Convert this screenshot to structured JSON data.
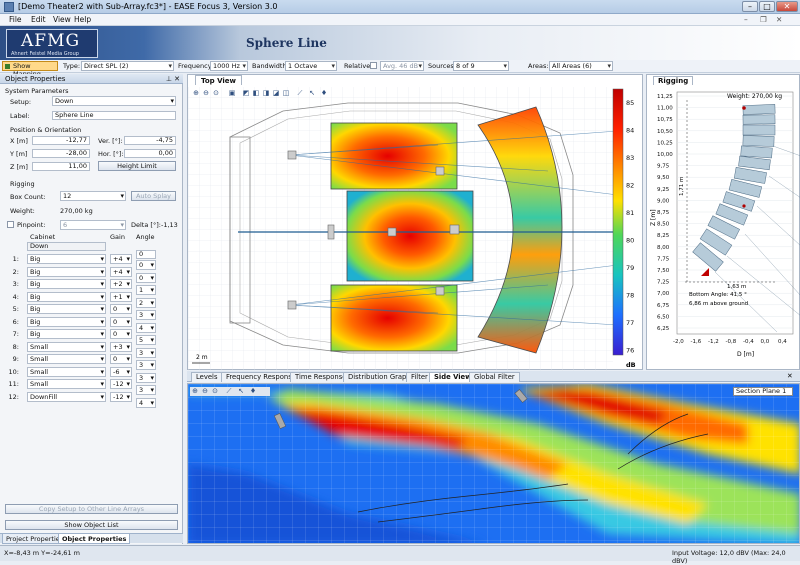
{
  "window": {
    "title": "[Demo Theater2 with Sub-Array.fc3*] - EASE Focus 3, Version 3.0"
  },
  "menu": [
    "File",
    "Edit",
    "View",
    "Help"
  ],
  "banner": {
    "logo": "AFMG",
    "logo_sub": "Ahnert Feistel Media Group",
    "title": "Sphere Line"
  },
  "toolbar": {
    "show_mapping": "Show Mapping",
    "type_label": "Type:",
    "type_value": "Direct SPL (2)",
    "frequency_label": "Frequency:",
    "frequency_value": "1000 Hz",
    "bandwidth_label": "Bandwidth:",
    "bandwidth_value": "1 Octave",
    "relative_label": "Relative:",
    "relative_value": "Avg. 46 dB",
    "sources_label": "Sources:",
    "sources_value": "8 of 9",
    "areas_label": "Areas:",
    "areas_value": "All Areas (6)"
  },
  "left": {
    "panel_title": "Object Properties",
    "system_params": "System Parameters",
    "setup_label": "Setup:",
    "setup_value": "Down",
    "label_label": "Label:",
    "label_value": "Sphere Line",
    "pos_title": "Position & Orientation",
    "x_label": "X [m]",
    "x_value": "-12,77",
    "y_label": "Y [m]",
    "y_value": "-28,00",
    "z_label": "Z [m]",
    "z_value": "11,00",
    "ver_label": "Ver. [°]:",
    "ver_value": "-4,75",
    "hor_label": "Hor. [°]:",
    "hor_value": "0,00",
    "height_limit": "Height Limit",
    "rigging_title": "Rigging",
    "boxcount_label": "Box Count:",
    "boxcount_value": "12",
    "auto_splay": "Auto Splay",
    "weight_label": "Weight:",
    "weight_value": "270,00 kg",
    "pinpoint_label": "Pinpoint:",
    "pinpoint_value": "6",
    "delta_label": "Delta [°]:",
    "delta_value": "-1,13",
    "col_cabinet": "Cabinet",
    "col_gain": "Gain",
    "col_angle": "Angle",
    "header_cabinet": "Down",
    "rows": [
      {
        "n": "1:",
        "cab": "Big",
        "gain": "+4",
        "angle": "0"
      },
      {
        "n": "2:",
        "cab": "Big",
        "gain": "+4",
        "angle": "0"
      },
      {
        "n": "3:",
        "cab": "Big",
        "gain": "+2",
        "angle": "1"
      },
      {
        "n": "4:",
        "cab": "Big",
        "gain": "+1",
        "angle": "2"
      },
      {
        "n": "5:",
        "cab": "Big",
        "gain": "0",
        "angle": "3"
      },
      {
        "n": "6:",
        "cab": "Big",
        "gain": "0",
        "angle": "4"
      },
      {
        "n": "7:",
        "cab": "Big",
        "gain": "0",
        "angle": "5"
      },
      {
        "n": "8:",
        "cab": "Small",
        "gain": "+3",
        "angle": "3"
      },
      {
        "n": "9:",
        "cab": "Small",
        "gain": "0",
        "angle": "3"
      },
      {
        "n": "10:",
        "cab": "Small",
        "gain": "-6",
        "angle": "3"
      },
      {
        "n": "11:",
        "cab": "Small",
        "gain": "-12",
        "angle": "3"
      },
      {
        "n": "12:",
        "cab": "DownFill",
        "gain": "-12",
        "angle": "4"
      }
    ],
    "angle_top": "0",
    "copy_setup": "Copy Setup to Other Line Arrays",
    "show_list": "Show Object List",
    "tab_project": "Project Properties",
    "tab_object": "Object Properties"
  },
  "topview": {
    "tab": "Top View",
    "scale": "2 m",
    "colorbar_ticks": [
      "85",
      "84",
      "83",
      "82",
      "81",
      "80",
      "79",
      "78",
      "77",
      "76"
    ],
    "colorbar_unit": "dB",
    "colors": {
      "hot": "#e60000",
      "warm": "#ffd700",
      "mid": "#3bd16f",
      "cool": "#1e8fff"
    }
  },
  "rigging": {
    "tab": "Rigging",
    "weight": "Weight: 270,00 kg",
    "zaxis": "Z [m]",
    "daxis": "D [m]",
    "height_dim": "1,71 m",
    "depth_dim": "1,63 m",
    "bottom_angle": "Bottom Angle: 41,5 °",
    "above_ground": "6,86 m above ground",
    "yticks": [
      "11,25",
      "11,00",
      "10,75",
      "10,50",
      "10,25",
      "10,00",
      "9,75",
      "9,50",
      "9,25",
      "9,00",
      "8,75",
      "8,50",
      "8,25",
      "8,00",
      "7,75",
      "7,50",
      "7,25",
      "7,00",
      "6,75",
      "6,50",
      "6,25"
    ],
    "xticks": [
      "-2,0",
      "-1,6",
      "-1,2",
      "-0,8",
      "-0,4",
      "0,0",
      "0,4"
    ]
  },
  "tabs": [
    "Levels",
    "Frequency Response",
    "Time Response",
    "Distribution Graph",
    "Filter",
    "Side View",
    "Global Filter"
  ],
  "sideview": {
    "section": "Section Plane 1"
  },
  "status": {
    "coords": "X=-8,43 m Y=-24,61 m",
    "input": "Input Voltage: 12,0 dBV (Max: 24,0 dBV)"
  }
}
